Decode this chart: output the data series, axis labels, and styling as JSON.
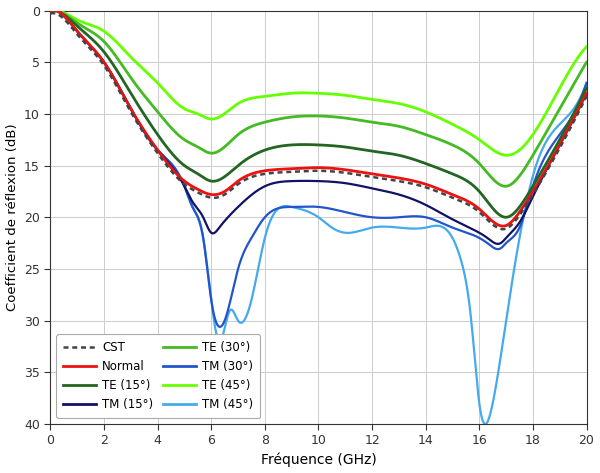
{
  "xlabel": "Fréquence (GHz)",
  "ylabel": "Coefficient de réflexion (dB)",
  "xlim": [
    0,
    20
  ],
  "ylim": [
    -40,
    0
  ],
  "yticks": [
    0,
    -5,
    -10,
    -15,
    -20,
    -25,
    -30,
    -35,
    -40
  ],
  "ytick_labels": [
    "0",
    "5",
    "10",
    "15",
    "20",
    "25",
    "30",
    "35",
    "40"
  ],
  "xticks": [
    0,
    2,
    4,
    6,
    8,
    10,
    12,
    14,
    16,
    18,
    20
  ],
  "colors": {
    "CST": "#444444",
    "Normal": "#ee1111",
    "TE15": "#226622",
    "TE30": "#44bb22",
    "TE45": "#66ff00",
    "TM15": "#111166",
    "TM30": "#2255cc",
    "TM45": "#44aaee"
  },
  "figsize": [
    6.0,
    4.73
  ],
  "dpi": 100,
  "background": "#ffffff",
  "grid_color": "#cccccc",
  "normal_pts": [
    [
      0,
      0.5,
      1,
      2,
      3,
      4,
      5,
      5.5,
      6,
      6.5,
      7,
      8,
      9,
      10,
      11,
      12,
      13,
      14,
      15,
      16,
      17,
      17.5,
      18,
      19,
      20
    ],
    [
      0,
      -0.5,
      -2,
      -5,
      -9.5,
      -13.5,
      -16.5,
      -17.3,
      -17.8,
      -17.5,
      -16.5,
      -15.5,
      -15.3,
      -15.2,
      -15.4,
      -15.8,
      -16.2,
      -16.8,
      -17.8,
      -19.2,
      -20.8,
      -19.5,
      -17.5,
      -13,
      -8
    ]
  ],
  "cst_pts": [
    [
      0,
      0.5,
      1,
      2,
      3,
      4,
      5,
      5.5,
      6,
      6.5,
      7,
      8,
      9,
      10,
      11,
      12,
      13,
      14,
      15,
      16,
      17,
      17.5,
      18,
      19,
      20
    ],
    [
      0,
      -0.5,
      -2,
      -5,
      -9.5,
      -13.5,
      -16.5,
      -17.3,
      -17.8,
      -17.5,
      -16.5,
      -15.5,
      -15.3,
      -15.2,
      -15.4,
      -15.8,
      -16.2,
      -16.8,
      -17.8,
      -19.2,
      -20.8,
      -19.5,
      -17.5,
      -13,
      -8
    ]
  ],
  "te15_pts": [
    [
      0,
      0.5,
      1,
      2,
      3,
      4,
      5,
      5.5,
      6,
      7,
      8,
      9,
      10,
      11,
      12,
      13,
      14,
      15,
      16,
      17,
      17.5,
      18,
      19,
      20
    ],
    [
      0,
      -0.4,
      -1.5,
      -4,
      -8,
      -12,
      -15,
      -15.8,
      -16.5,
      -15,
      -13.5,
      -13,
      -13,
      -13.2,
      -13.6,
      -14,
      -14.8,
      -15.8,
      -17.5,
      -20,
      -19,
      -17,
      -12.5,
      -7.5
    ]
  ],
  "te30_pts": [
    [
      0,
      0.5,
      1,
      2,
      3,
      4,
      5,
      5.5,
      6,
      7,
      8,
      9,
      10,
      11,
      12,
      13,
      14,
      15,
      16,
      17,
      17.5,
      18,
      19,
      20
    ],
    [
      0,
      -0.3,
      -1.2,
      -3,
      -6.5,
      -9.8,
      -12.5,
      -13.2,
      -13.8,
      -12,
      -10.8,
      -10.3,
      -10.2,
      -10.4,
      -10.8,
      -11.2,
      -12,
      -13,
      -14.8,
      -17,
      -16,
      -14,
      -9.5,
      -5
    ]
  ],
  "te45_pts": [
    [
      0,
      0.5,
      1,
      2,
      3,
      4,
      5,
      5.5,
      6,
      7,
      8,
      9,
      10,
      11,
      12,
      13,
      14,
      15,
      16,
      17,
      17.5,
      18,
      19,
      20
    ],
    [
      0,
      -0.2,
      -0.9,
      -2,
      -4.5,
      -7,
      -9.5,
      -10,
      -10.5,
      -9,
      -8.3,
      -8,
      -8,
      -8.2,
      -8.6,
      -9,
      -9.8,
      -11,
      -12.5,
      -14,
      -13.5,
      -12,
      -7.5,
      -3.5
    ]
  ],
  "tm15_pts": [
    [
      0,
      0.5,
      1,
      2,
      3,
      4,
      5,
      5.3,
      5.7,
      6,
      6.3,
      7,
      8,
      9,
      10,
      11,
      12,
      13,
      14,
      15,
      16,
      16.3,
      16.8,
      17,
      17.5,
      18,
      19,
      20
    ],
    [
      0,
      -0.5,
      -2,
      -5,
      -9.5,
      -13.5,
      -17,
      -18.5,
      -20,
      -21.5,
      -21,
      -19,
      -17,
      -16.5,
      -16.5,
      -16.7,
      -17.2,
      -17.8,
      -18.8,
      -20.2,
      -21.5,
      -22,
      -22.5,
      -22,
      -20.5,
      -18,
      -13,
      -8
    ]
  ],
  "tm30_pts": [
    [
      0,
      0.5,
      1,
      2,
      3,
      4,
      5,
      5.3,
      5.7,
      6,
      6.5,
      7,
      7.5,
      8,
      9,
      10,
      11,
      12,
      13,
      14,
      15,
      16,
      16.3,
      16.8,
      17,
      17.5,
      18,
      19,
      20
    ],
    [
      0,
      -0.5,
      -2,
      -5,
      -9.5,
      -13.5,
      -17,
      -19,
      -22,
      -28,
      -30,
      -25,
      -22,
      -20,
      -19,
      -19,
      -19.5,
      -20,
      -20,
      -20,
      -21,
      -22,
      -22.5,
      -23,
      -22.5,
      -21,
      -17,
      -12,
      -7
    ]
  ],
  "tm45_pts": [
    [
      0,
      0.5,
      1,
      2,
      3,
      4,
      5,
      5.3,
      5.7,
      6,
      6.3,
      6.7,
      7,
      7.5,
      8,
      9,
      10,
      10.5,
      11,
      12,
      13,
      14,
      15,
      15.3,
      15.7,
      16,
      16.2,
      16.5,
      17,
      17.5,
      18,
      19,
      20
    ],
    [
      0,
      -0.5,
      -2,
      -5,
      -9.5,
      -13.5,
      -17,
      -19,
      -22,
      -28,
      -32,
      -29,
      -30,
      -28,
      -22,
      -19,
      -20,
      -21,
      -21.5,
      -21,
      -21,
      -21,
      -22,
      -24,
      -30,
      -38,
      -40,
      -38,
      -30,
      -22,
      -16,
      -11,
      -7
    ]
  ]
}
